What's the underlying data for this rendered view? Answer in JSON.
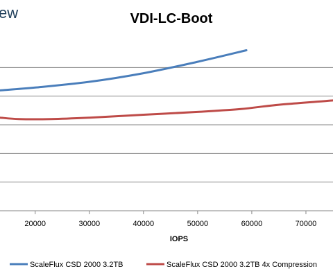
{
  "page": {
    "title_fragment": "ew"
  },
  "chart_data": {
    "type": "line",
    "title": "VDI-LC-Boot",
    "xlabel": "IOPS",
    "ylabel": "",
    "xlim": [
      13500,
      75000
    ],
    "ylim": [
      0,
      1.2
    ],
    "x_ticks": [
      20000,
      30000,
      40000,
      50000,
      60000,
      70000
    ],
    "x_tick_labels": [
      "20000",
      "30000",
      "40000",
      "50000",
      "60000",
      "70000"
    ],
    "y_gridlines": [
      0.2,
      0.4,
      0.6,
      0.8,
      1.0
    ],
    "grid": true,
    "legend_position": "bottom",
    "series": [
      {
        "name": "ScaleFlux CSD 2000 3.2TB",
        "color": "#4a7ebb",
        "x": [
          13500,
          20000,
          30000,
          40000,
          50000,
          59000
        ],
        "y": [
          0.84,
          0.86,
          0.9,
          0.96,
          1.04,
          1.12
        ]
      },
      {
        "name": "ScaleFlux CSD 2000 3.2TB 4x Compression",
        "color": "#be4b48",
        "x": [
          13500,
          17000,
          23000,
          30000,
          40000,
          50000,
          58000,
          65000,
          75000
        ],
        "y": [
          0.65,
          0.64,
          0.64,
          0.65,
          0.67,
          0.69,
          0.71,
          0.74,
          0.77
        ]
      }
    ]
  }
}
